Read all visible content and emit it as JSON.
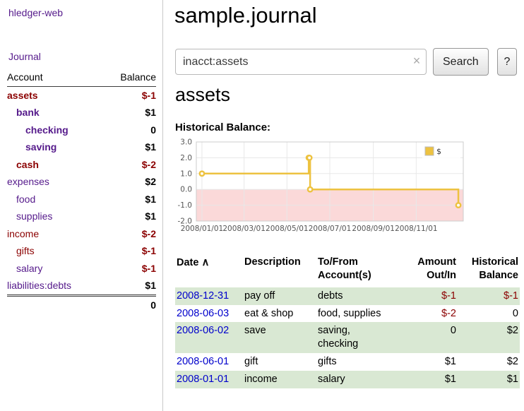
{
  "sidebar": {
    "app_title": "hledger-web",
    "journal_label": "Journal",
    "table": {
      "headers": {
        "account": "Account",
        "balance": "Balance"
      },
      "rows": [
        {
          "name": "assets",
          "indent": 0,
          "bold": true,
          "name_color": "negative",
          "balance": "$-1",
          "balance_color": "negative"
        },
        {
          "name": "bank",
          "indent": 1,
          "bold": true,
          "name_color": "purple",
          "balance": "$1",
          "balance_color": "default"
        },
        {
          "name": "checking",
          "indent": 2,
          "bold": true,
          "name_color": "purple",
          "balance": "0",
          "balance_color": "default"
        },
        {
          "name": "saving",
          "indent": 2,
          "bold": true,
          "name_color": "purple",
          "balance": "$1",
          "balance_color": "default"
        },
        {
          "name": "cash",
          "indent": 1,
          "bold": true,
          "name_color": "negative",
          "balance": "$-2",
          "balance_color": "negative"
        },
        {
          "name": "expenses",
          "indent": 0,
          "bold": false,
          "name_color": "purple",
          "balance": "$2",
          "balance_color": "default"
        },
        {
          "name": "food",
          "indent": 1,
          "bold": false,
          "name_color": "purple",
          "balance": "$1",
          "balance_color": "default"
        },
        {
          "name": "supplies",
          "indent": 1,
          "bold": false,
          "name_color": "purple",
          "balance": "$1",
          "balance_color": "default"
        },
        {
          "name": "income",
          "indent": 0,
          "bold": false,
          "name_color": "negative",
          "balance": "$-2",
          "balance_color": "negative"
        },
        {
          "name": "gifts",
          "indent": 1,
          "bold": false,
          "name_color": "negative",
          "balance": "$-1",
          "balance_color": "negative"
        },
        {
          "name": "salary",
          "indent": 1,
          "bold": false,
          "name_color": "purple",
          "balance": "$-1",
          "balance_color": "negative"
        },
        {
          "name": "liabilities:debts",
          "indent": 0,
          "bold": false,
          "name_color": "purple",
          "balance": "$1",
          "balance_color": "default"
        }
      ],
      "total": "0"
    }
  },
  "main": {
    "title": "sample.journal",
    "search": {
      "value": "inacct:assets",
      "clear_icon": "×",
      "button_label": "Search",
      "help_label": "?"
    },
    "account_heading": "assets",
    "chart_label": "Historical Balance:",
    "register": {
      "headers": {
        "date": "Date",
        "sort_icon": "∧",
        "description": "Description",
        "account": "To/From Account(s)",
        "amount": "Amount Out/In",
        "balance": "Historical Balance"
      },
      "rows": [
        {
          "date": "2008-12-31",
          "description": "pay off",
          "accounts": "debts",
          "amount": "$-1",
          "amount_neg": true,
          "balance": "$-1",
          "balance_neg": true,
          "shaded": true
        },
        {
          "date": "2008-06-03",
          "description": "eat & shop",
          "accounts": "food, supplies",
          "amount": "$-2",
          "amount_neg": true,
          "balance": "0",
          "balance_neg": false,
          "shaded": false
        },
        {
          "date": "2008-06-02",
          "description": "save",
          "accounts": "saving, checking",
          "amount": "0",
          "amount_neg": false,
          "balance": "$2",
          "balance_neg": false,
          "shaded": true
        },
        {
          "date": "2008-06-01",
          "description": "gift",
          "accounts": "gifts",
          "amount": "$1",
          "amount_neg": false,
          "balance": "$2",
          "balance_neg": false,
          "shaded": false
        },
        {
          "date": "2008-01-01",
          "description": "income",
          "accounts": "salary",
          "amount": "$1",
          "amount_neg": false,
          "balance": "$1",
          "balance_neg": false,
          "shaded": true
        }
      ]
    }
  },
  "chart_data": {
    "type": "line",
    "step": true,
    "title": "Historical Balance",
    "legend": "$",
    "legend_position": "top-right",
    "grid": true,
    "ylim": [
      -2.0,
      3.0
    ],
    "xlim_days": [
      -8,
      372
    ],
    "y_ticks": [
      3.0,
      2.0,
      1.0,
      0.0,
      -1.0,
      -2.0
    ],
    "x_ticks": [
      {
        "label": "2008/01/01",
        "day": 0
      },
      {
        "label": "2008/03/01",
        "day": 60
      },
      {
        "label": "2008/05/01",
        "day": 121
      },
      {
        "label": "2008/07/01",
        "day": 182
      },
      {
        "label": "2008/09/01",
        "day": 244
      },
      {
        "label": "2008/11/01",
        "day": 305
      }
    ],
    "series": [
      {
        "name": "$",
        "color": "#edc240",
        "points": [
          {
            "date": "2008-01-01",
            "day": 0,
            "y": 1
          },
          {
            "date": "2008-06-01",
            "day": 152,
            "y": 2
          },
          {
            "date": "2008-06-02",
            "day": 153,
            "y": 2
          },
          {
            "date": "2008-06-03",
            "day": 154,
            "y": 0
          },
          {
            "date": "2008-12-31",
            "day": 365,
            "y": -1
          }
        ]
      }
    ],
    "negative_region_color": "#fbd9d9"
  },
  "colors": {
    "link_purple": "#551A8B",
    "negative_red": "#8B0000",
    "date_link_blue": "#0000cc",
    "series_yellow": "#edc240",
    "row_green": "#d9e8d3"
  }
}
